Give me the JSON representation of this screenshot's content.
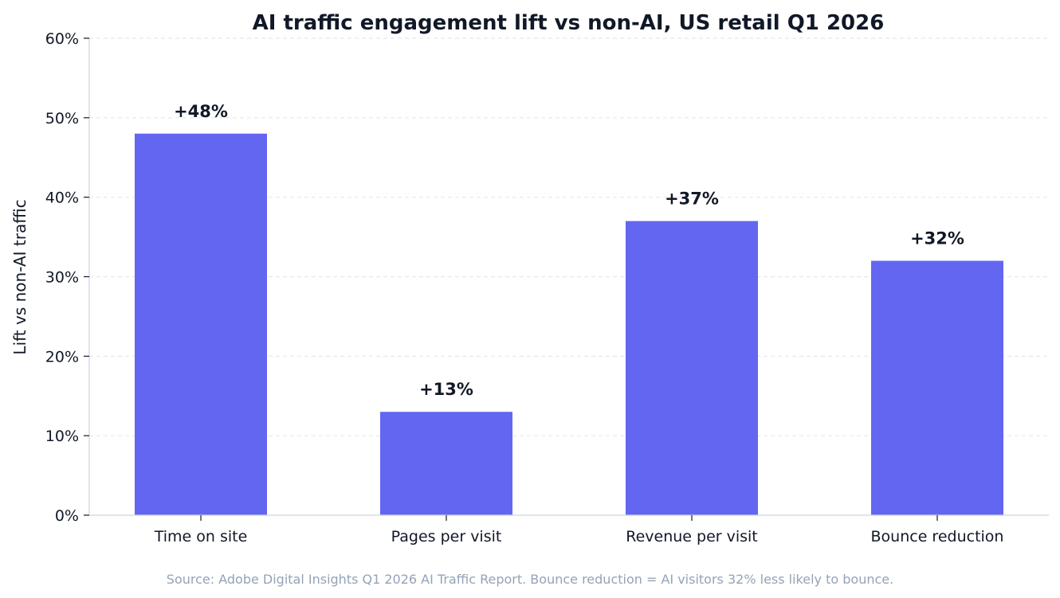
{
  "chart_data": {
    "type": "bar",
    "title": "AI traffic engagement lift vs non-AI, US retail Q1 2026",
    "xlabel": "",
    "ylabel": "Lift vs non-AI traffic",
    "categories": [
      "Time on site",
      "Pages per visit",
      "Revenue per visit",
      "Bounce reduction"
    ],
    "values": [
      48,
      13,
      37,
      32
    ],
    "value_labels": [
      "+48%",
      "+13%",
      "+37%",
      "+32%"
    ],
    "ylim": [
      0,
      60
    ],
    "yticks": [
      0,
      10,
      20,
      30,
      40,
      50,
      60
    ],
    "ytick_labels": [
      "0%",
      "10%",
      "20%",
      "30%",
      "40%",
      "50%",
      "60%"
    ],
    "grid": "y-dashed",
    "legend": "none",
    "bar_color": "#6366f1",
    "text_color": "#111827",
    "grid_color": "#e5e7eb",
    "axis_color": "#cbd5e1"
  },
  "footer": {
    "source": "Source: Adobe Digital Insights Q1 2026 AI Traffic Report. Bounce reduction = AI visitors 32% less likely to bounce.",
    "source_color": "#94a3b8"
  }
}
